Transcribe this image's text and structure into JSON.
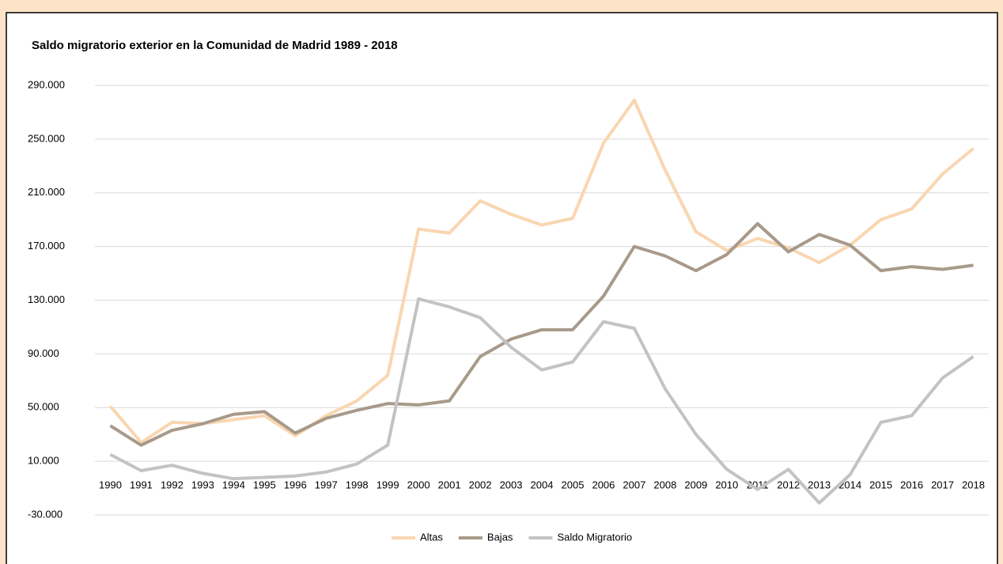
{
  "chart_data": {
    "type": "line",
    "title": "Saldo migratorio exterior en la Comunidad de Madrid 1989 - 2018",
    "categories": [
      "1990",
      "1991",
      "1992",
      "1993",
      "1994",
      "1995",
      "1996",
      "1997",
      "1998",
      "1999",
      "2000",
      "2001",
      "2002",
      "2003",
      "2004",
      "2005",
      "2006",
      "2007",
      "2008",
      "2009",
      "2010",
      "2011",
      "2012",
      "2013",
      "2014",
      "2015",
      "2016",
      "2017",
      "2018"
    ],
    "series": [
      {
        "name": "Altas",
        "color": "#f9d6b1",
        "values": [
          51000,
          24000,
          39000,
          38000,
          41000,
          44000,
          29000,
          44000,
          55000,
          74000,
          183000,
          180000,
          204000,
          194000,
          186000,
          191000,
          247000,
          279000,
          227000,
          181000,
          167000,
          176000,
          169000,
          158000,
          171000,
          190000,
          198000,
          224000,
          243000
        ]
      },
      {
        "name": "Bajas",
        "color": "#a89a8a",
        "values": [
          36500,
          22000,
          33000,
          38000,
          45000,
          47000,
          31000,
          42000,
          48000,
          53000,
          52000,
          55000,
          88000,
          101000,
          108000,
          108000,
          133000,
          170000,
          163000,
          152000,
          164000,
          187000,
          166000,
          179000,
          171000,
          152000,
          155000,
          153000,
          156000
        ]
      },
      {
        "name": "Saldo Migratorio",
        "color": "#c3c3c3",
        "values": [
          15000,
          3000,
          7000,
          1000,
          -3000,
          -2000,
          -1000,
          2000,
          8000,
          22000,
          131000,
          125000,
          117000,
          95000,
          78000,
          84000,
          114000,
          109000,
          64000,
          30000,
          4000,
          -11000,
          4000,
          -21000,
          0,
          39000,
          44000,
          72000,
          88000
        ]
      }
    ],
    "ylim": [
      -30000,
      290000
    ],
    "yticks": [
      {
        "value": -30000,
        "label": "-30.000"
      },
      {
        "value": 10000,
        "label": "10.000"
      },
      {
        "value": 50000,
        "label": "50.000"
      },
      {
        "value": 90000,
        "label": "90.000"
      },
      {
        "value": 130000,
        "label": "130.000"
      },
      {
        "value": 170000,
        "label": "170.000"
      },
      {
        "value": 210000,
        "label": "210.000"
      },
      {
        "value": 250000,
        "label": "250.000"
      },
      {
        "value": 290000,
        "label": "290.000"
      }
    ],
    "grid": true,
    "legend": "bottom"
  }
}
